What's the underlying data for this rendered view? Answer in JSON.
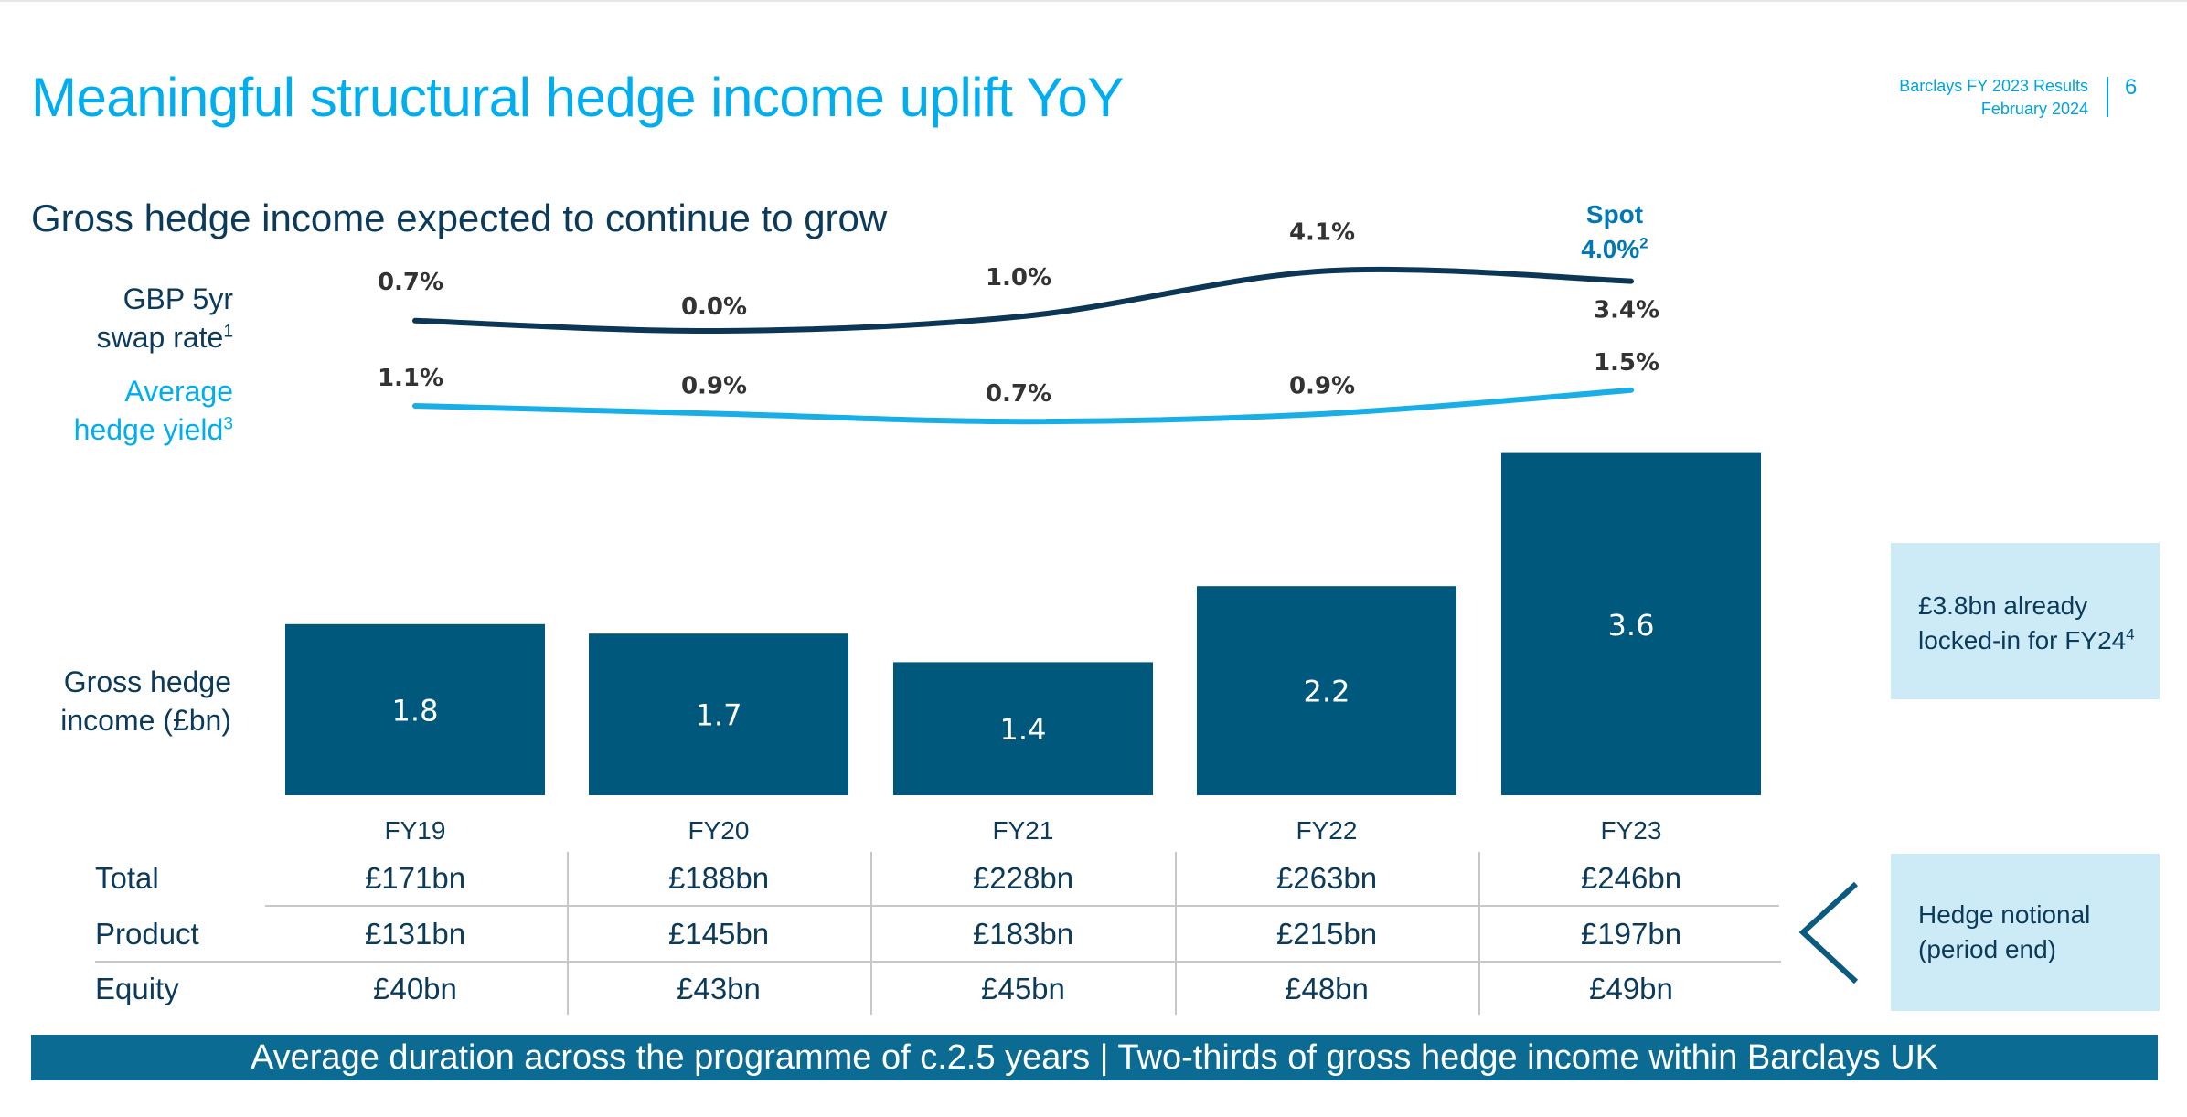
{
  "header": {
    "title": "Meaningful structural hedge income uplift YoY",
    "report_name": "Barclays FY 2023 Results",
    "report_date": "February 2024",
    "page_number": "6"
  },
  "subtitle": "Gross hedge income expected to continue to grow",
  "labels": {
    "swap_rate_line1": "GBP 5yr",
    "swap_rate_line2": "swap rate",
    "swap_rate_note": "1",
    "hedge_yield_line1": "Average",
    "hedge_yield_line2": "hedge yield",
    "hedge_yield_note": "3",
    "income_line1": "Gross hedge",
    "income_line2": "income (£bn)"
  },
  "spot": {
    "label": "Spot",
    "value": "4.0%",
    "note": "2"
  },
  "colors": {
    "title_blue": "#00aeef",
    "navy": "#0b3a5b",
    "bar": "#00587c",
    "yield_line": "#1aaee6",
    "swap_line": "#0c3656",
    "callout_bg": "#cdeaf7",
    "footer_bg": "#0b6b93"
  },
  "chart_data": {
    "type": "bar",
    "categories": [
      "FY19",
      "FY20",
      "FY21",
      "FY22",
      "FY23"
    ],
    "series": [
      {
        "name": "Gross hedge income (£bn)",
        "type": "bar",
        "values": [
          1.8,
          1.7,
          1.4,
          2.2,
          3.6
        ],
        "labels": [
          "1.8",
          "1.7",
          "1.4",
          "2.2",
          "3.6"
        ]
      },
      {
        "name": "GBP 5yr swap rate",
        "type": "line",
        "values": [
          0.7,
          0.0,
          1.0,
          4.1,
          3.4
        ],
        "labels": [
          "0.7%",
          "0.0%",
          "1.0%",
          "4.1%",
          "3.4%"
        ]
      },
      {
        "name": "Average hedge yield",
        "type": "line",
        "values": [
          1.1,
          0.9,
          0.7,
          0.9,
          1.5
        ],
        "labels": [
          "1.1%",
          "0.9%",
          "0.7%",
          "0.9%",
          "1.5%"
        ]
      }
    ],
    "title": "Gross hedge income expected to continue to grow",
    "grid": false
  },
  "table": {
    "rows": [
      {
        "label": "Total",
        "values": [
          "£171bn",
          "£188bn",
          "£228bn",
          "£263bn",
          "£246bn"
        ]
      },
      {
        "label": "Product",
        "values": [
          "£131bn",
          "£145bn",
          "£183bn",
          "£215bn",
          "£197bn"
        ]
      },
      {
        "label": "Equity",
        "values": [
          "£40bn",
          "£43bn",
          "£45bn",
          "£48bn",
          "£49bn"
        ]
      }
    ]
  },
  "callouts": {
    "locked_in_line1": "£3.8bn already",
    "locked_in_line2": "locked-in for FY24",
    "locked_in_note": "4",
    "notional_line1": "Hedge notional",
    "notional_line2": "(period end)"
  },
  "footer": "Average duration across the programme of c.2.5 years | Two-thirds of gross hedge income within Barclays UK"
}
